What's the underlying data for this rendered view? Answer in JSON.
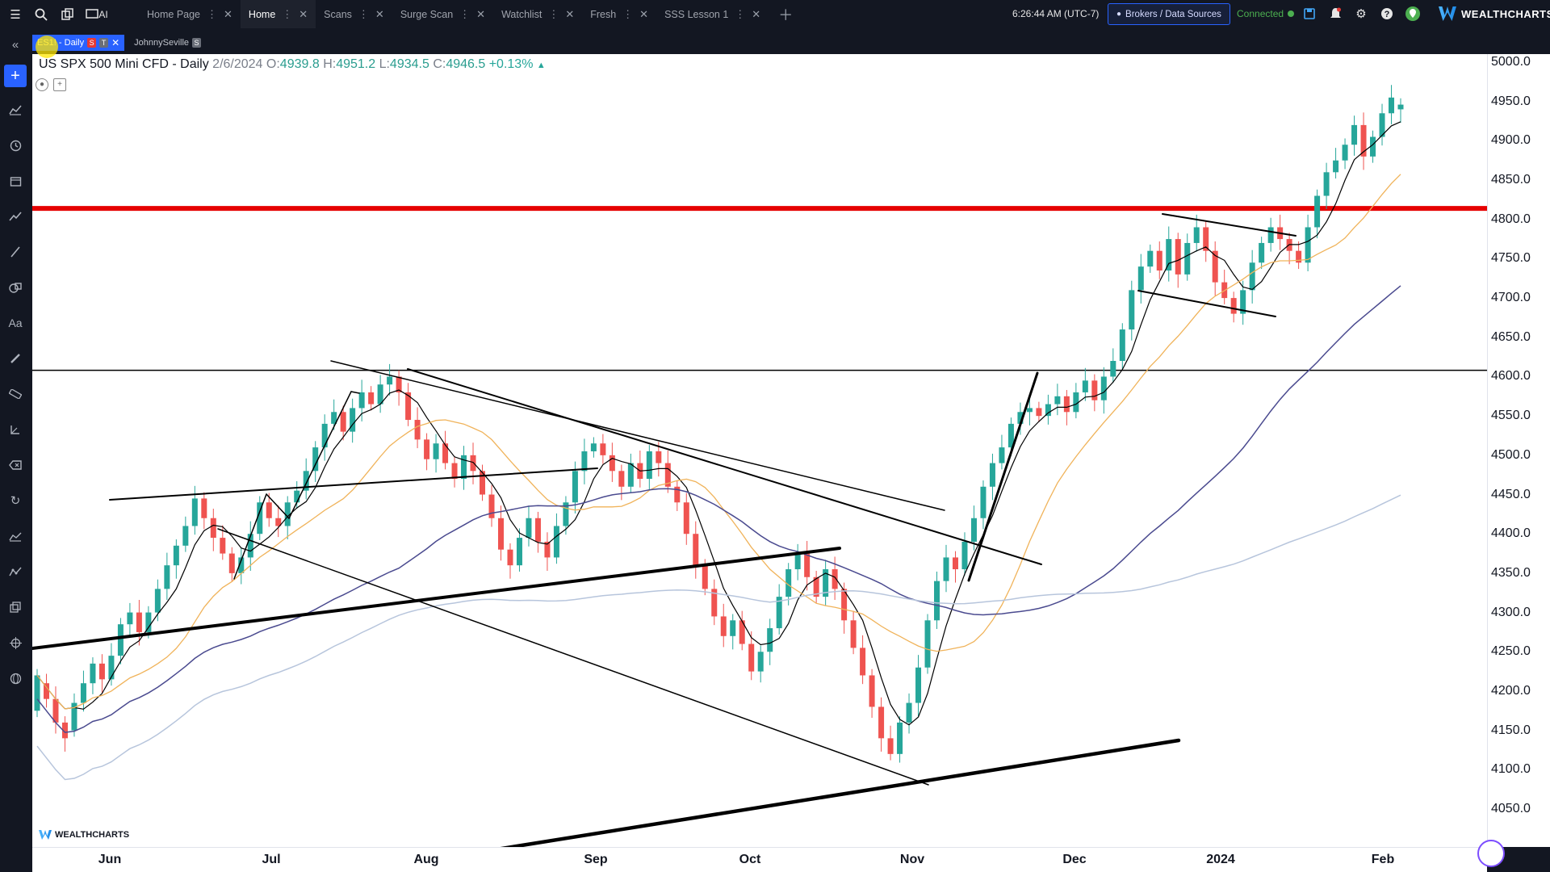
{
  "topbar": {
    "tabs": [
      {
        "label": "Home Page",
        "active": false
      },
      {
        "label": "Home",
        "active": true
      },
      {
        "label": "Scans",
        "active": false
      },
      {
        "label": "Surge Scan",
        "active": false
      },
      {
        "label": "Watchlist",
        "active": false
      },
      {
        "label": "Fresh",
        "active": false
      },
      {
        "label": "SSS Lesson 1",
        "active": false
      }
    ],
    "clock": "6:26:44 AM  (UTC-7)",
    "brokers_label": "Brokers / Data Sources",
    "connected_label": "Connected",
    "brand": "WEALTHCHARTS",
    "ai_label": "AI"
  },
  "subtabs": [
    {
      "label": "ES1! - Daily",
      "badges": [
        "S",
        "T"
      ],
      "active": true
    },
    {
      "label": "JohnnySeville",
      "badges": [
        "S"
      ],
      "active": false
    }
  ],
  "legend": {
    "symbol": "US SPX 500 Mini CFD - Daily",
    "date": "2/6/2024",
    "o_label": "O:",
    "o": "4939.8",
    "h_label": "H:",
    "h": "4951.2",
    "l_label": "L:",
    "l": "4934.5",
    "c_label": "C:",
    "c": "4946.5",
    "change": "+0.13%"
  },
  "watermark": "WEALTHCHARTS",
  "chart_data": {
    "type": "candlestick",
    "title": "US SPX 500 Mini CFD - Daily",
    "ylim": [
      4020,
      5020
    ],
    "y_ticks": [
      4050,
      4100,
      4150,
      4200,
      4250,
      4300,
      4350,
      4400,
      4450,
      4500,
      4550,
      4600,
      4650,
      4700,
      4750,
      4800,
      4850,
      4900,
      4950,
      5000
    ],
    "x_ticks": [
      "Jun",
      "Jul",
      "Aug",
      "Sep",
      "Oct",
      "Nov",
      "Dec",
      "2024",
      "Feb"
    ],
    "horizontal_lines": [
      {
        "y": 4814,
        "color": "#e60000"
      },
      {
        "y": 4608,
        "color": "#000000"
      }
    ],
    "last_candle": {
      "date": "2/6/2024",
      "open": 4939.8,
      "high": 4951.2,
      "low": 4934.5,
      "close": 4946.5
    },
    "colors": {
      "up": "#26a69a",
      "down": "#ef5350"
    }
  }
}
